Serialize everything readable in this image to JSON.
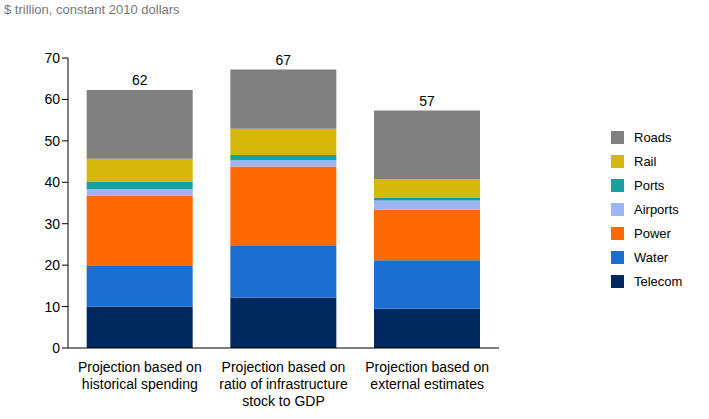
{
  "chart_data": {
    "type": "bar",
    "subtitle": "$ trillion, constant 2010 dollars",
    "stacked": true,
    "grid": false,
    "legend": "right",
    "categories": [
      "Projection based on historical spending",
      "Projection based on ratio of infrastructure stock to GDP",
      "Projection based on external estimates"
    ],
    "ylim": [
      0,
      70
    ],
    "yticks": [
      0,
      10,
      20,
      30,
      40,
      50,
      60,
      70
    ],
    "series": [
      {
        "name": "Telecom",
        "color": "#002960",
        "values": [
          10.0,
          12.2,
          9.5
        ]
      },
      {
        "name": "Water",
        "color": "#1c6fd2",
        "values": [
          9.8,
          12.4,
          11.7
        ]
      },
      {
        "name": "Power",
        "color": "#ff6a00",
        "values": [
          17.0,
          19.2,
          12.2
        ]
      },
      {
        "name": "Airports",
        "color": "#9db4f5",
        "values": [
          1.5,
          1.5,
          2.2
        ]
      },
      {
        "name": "Ports",
        "color": "#1a9fa0",
        "values": [
          1.9,
          1.3,
          0.6
        ]
      },
      {
        "name": "Rail",
        "color": "#d6b70c",
        "values": [
          5.5,
          6.3,
          4.6
        ]
      },
      {
        "name": "Roads",
        "color": "#808080",
        "values": [
          16.6,
          14.3,
          16.5
        ]
      }
    ],
    "totals": [
      62,
      67,
      57
    ]
  }
}
